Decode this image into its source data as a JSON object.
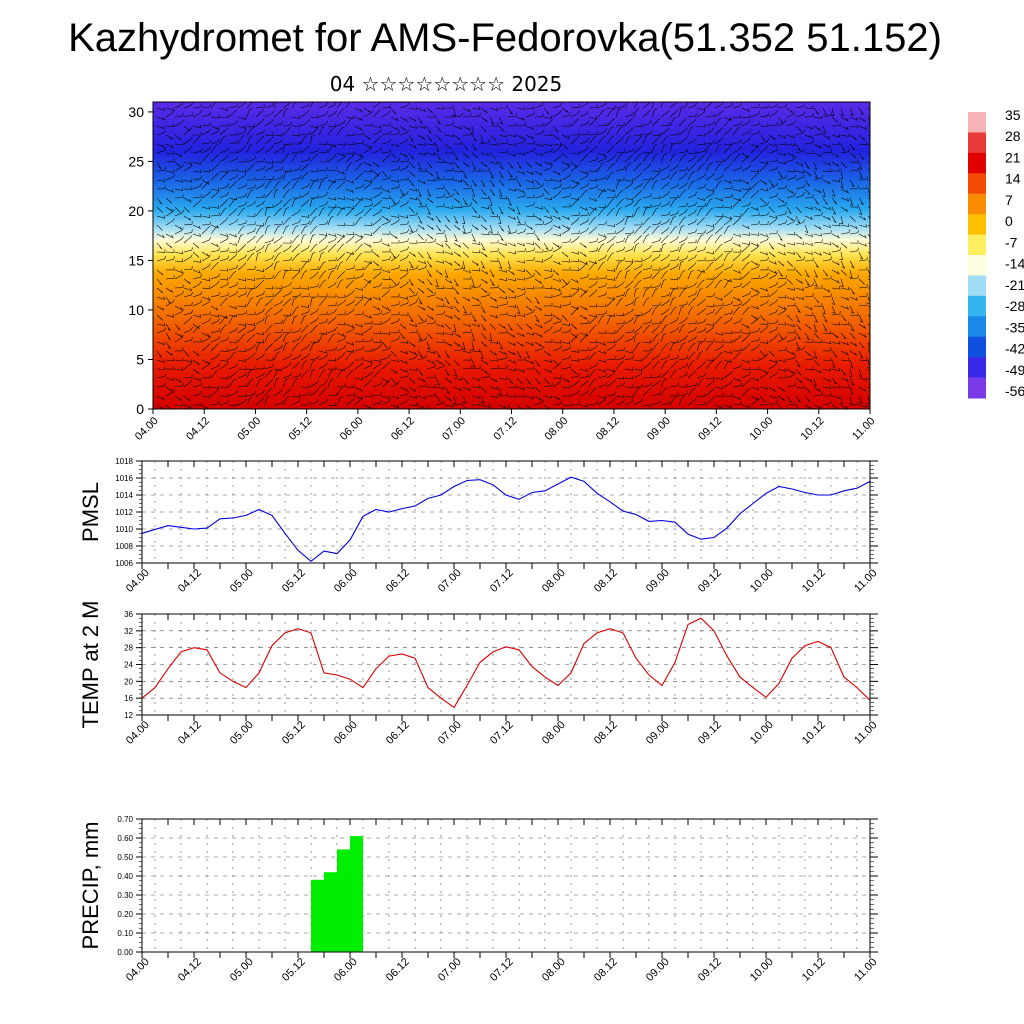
{
  "page": {
    "title": "Kazhydromet for AMS-Fedorovka(51.352 51.152)",
    "subtitle": "04 ☆☆☆☆☆☆☆☆ 2025"
  },
  "colors": {
    "pmsl_line": "#0000dd",
    "temp_line": "#dd0000",
    "precip_bar": "#00ee00",
    "grid": "#555555"
  },
  "chart_data": [
    {
      "type": "heatmap",
      "title": "",
      "xlabel": "",
      "ylabel": "",
      "x_tick_labels": [
        "04.00",
        "04.12",
        "05.00",
        "05.12",
        "06.00",
        "06.12",
        "07.00",
        "07.12",
        "08.00",
        "08.12",
        "09.00",
        "09.12",
        "10.00",
        "10.12",
        "11.00"
      ],
      "y_ticks": [
        0,
        5,
        10,
        15,
        20,
        25,
        30
      ],
      "ylim": [
        0,
        31
      ],
      "colorbar_labels": [
        "35",
        "28",
        "21",
        "14",
        "7",
        "0",
        "-7",
        "-14",
        "-21",
        "-28",
        "-35",
        "-42",
        "-49",
        "-56"
      ],
      "colorbar_colors": [
        "#f5b3b3",
        "#e83838",
        "#e00000",
        "#f24a00",
        "#f98c00",
        "#ffc000",
        "#ffee60",
        "#fffde0",
        "#9fdcf5",
        "#33b5f0",
        "#1a88e8",
        "#1050e0",
        "#3a2ae8",
        "#7a3ae8"
      ],
      "field_note": "warm near surface, cold aloft",
      "wind_barbs": true
    },
    {
      "type": "line",
      "ylabel": "PMSL",
      "ylim": [
        1006,
        1018
      ],
      "y_ticks": [
        1006,
        1008,
        1010,
        1012,
        1014,
        1016,
        1018
      ],
      "x_tick_labels": [
        "04.00",
        "04.12",
        "05.00",
        "05.12",
        "06.00",
        "06.12",
        "07.00",
        "07.12",
        "08.00",
        "08.12",
        "09.00",
        "09.12",
        "10.00",
        "10.12",
        "11.00"
      ],
      "x_range_hours": [
        0,
        168
      ],
      "grid": true,
      "series": [
        {
          "x": [
            0,
            6,
            9,
            12,
            15,
            18,
            21,
            24,
            27,
            30,
            33,
            36,
            39,
            42,
            45,
            48,
            51,
            54,
            57,
            60,
            63,
            66,
            69,
            72,
            75,
            78,
            81,
            84,
            87,
            90,
            93,
            96,
            99,
            102,
            105,
            108,
            111,
            114,
            117,
            120,
            123,
            126,
            129,
            132,
            135,
            138,
            141,
            144,
            147,
            150,
            153,
            156,
            159,
            162,
            165,
            168
          ],
          "y": [
            1009.5,
            1010.4,
            1010.2,
            1010.0,
            1010.1,
            1011.2,
            1011.3,
            1011.6,
            1012.3,
            1011.6,
            1009.5,
            1007.5,
            1006.2,
            1007.4,
            1007.1,
            1008.7,
            1011.5,
            1012.3,
            1012.0,
            1012.4,
            1012.7,
            1013.6,
            1014.0,
            1015.0,
            1015.7,
            1015.8,
            1015.2,
            1014.0,
            1013.5,
            1014.3,
            1014.5,
            1015.3,
            1016.1,
            1015.6,
            1014.2,
            1013.2,
            1012.1,
            1011.7,
            1010.9,
            1011.0,
            1010.8,
            1009.4,
            1008.8,
            1009.0,
            1010.1,
            1011.8,
            1013.0,
            1014.2,
            1015.0,
            1014.7,
            1014.3,
            1014.0,
            1014.0,
            1014.5,
            1014.8,
            1015.6
          ]
        }
      ]
    },
    {
      "type": "line",
      "ylabel": "TEMP at 2 M",
      "ylim": [
        12,
        36
      ],
      "y_ticks": [
        12,
        16,
        20,
        24,
        28,
        32,
        36
      ],
      "x_tick_labels": [
        "04.00",
        "04.12",
        "05.00",
        "05.12",
        "06.00",
        "06.12",
        "07.00",
        "07.12",
        "08.00",
        "08.12",
        "09.00",
        "09.12",
        "10.00",
        "10.12",
        "11.00"
      ],
      "x_range_hours": [
        0,
        168
      ],
      "grid": true,
      "series": [
        {
          "x": [
            0,
            3,
            6,
            9,
            12,
            15,
            18,
            21,
            24,
            27,
            30,
            33,
            36,
            39,
            42,
            45,
            48,
            51,
            54,
            57,
            60,
            63,
            66,
            69,
            72,
            75,
            78,
            81,
            84,
            87,
            90,
            93,
            96,
            99,
            102,
            105,
            108,
            111,
            114,
            117,
            120,
            123,
            126,
            129,
            132,
            135,
            138,
            141,
            144,
            147,
            150,
            153,
            156,
            159,
            162,
            165,
            168
          ],
          "y": [
            16.0,
            18.5,
            23.0,
            27.0,
            28.0,
            27.5,
            22.0,
            20.0,
            18.5,
            22.0,
            28.5,
            31.5,
            32.5,
            31.5,
            22.0,
            21.5,
            20.5,
            18.5,
            23.0,
            26.0,
            26.5,
            25.5,
            18.5,
            16.0,
            13.8,
            19.0,
            24.5,
            27.0,
            28.2,
            27.5,
            23.5,
            21.0,
            19.0,
            22.0,
            29.0,
            31.5,
            32.5,
            31.5,
            25.5,
            21.5,
            19.0,
            24.5,
            33.5,
            35.0,
            32.0,
            26.0,
            21.0,
            18.5,
            16.2,
            19.5,
            25.5,
            28.5,
            29.5,
            28.0,
            21.0,
            18.5,
            15.5
          ]
        }
      ]
    },
    {
      "type": "bar",
      "ylabel": "PRECIP, mm",
      "ylim": [
        0,
        0.7
      ],
      "y_ticks": [
        0.0,
        0.1,
        0.2,
        0.3,
        0.4,
        0.5,
        0.6,
        0.7
      ],
      "y_tick_labels": [
        "0.00",
        "0.10",
        "0.20",
        "0.30",
        "0.40",
        "0.50",
        "0.60",
        "0.70"
      ],
      "x_tick_labels": [
        "04.00",
        "04.12",
        "05.00",
        "05.12",
        "06.00",
        "06.12",
        "07.00",
        "07.12",
        "08.00",
        "08.12",
        "09.00",
        "09.12",
        "10.00",
        "10.12",
        "11.00"
      ],
      "x_range_hours": [
        0,
        168
      ],
      "grid": true,
      "bar_width_hours": 3,
      "bars": [
        {
          "start_hour": 39,
          "value": 0.38
        },
        {
          "start_hour": 42,
          "value": 0.42
        },
        {
          "start_hour": 45,
          "value": 0.54
        },
        {
          "start_hour": 48,
          "value": 0.61
        }
      ]
    }
  ]
}
